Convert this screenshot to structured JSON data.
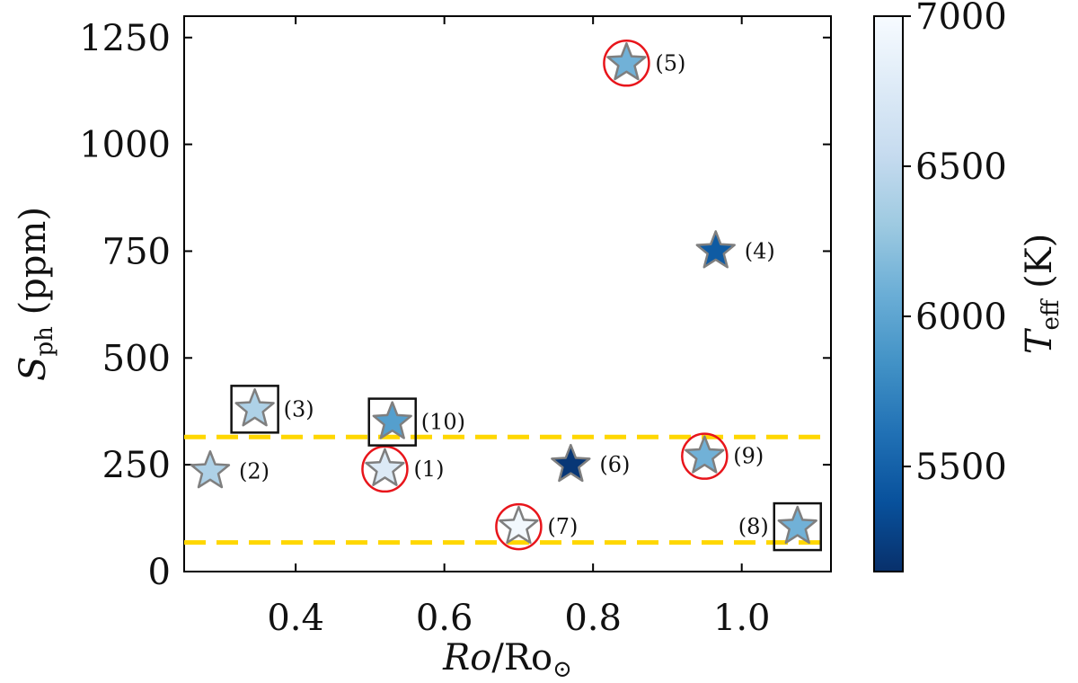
{
  "chart_data": {
    "type": "scatter",
    "xlabel": {
      "italic": "Ro",
      "rest": "/Ro",
      "sub": "⊙"
    },
    "ylabel": {
      "main": "S",
      "sub": "ph",
      "rest": " (ppm)"
    },
    "xlim": [
      0.25,
      1.12
    ],
    "ylim": [
      0,
      1300
    ],
    "xticks": [
      0.4,
      0.6,
      0.8,
      1.0
    ],
    "xtick_labels": [
      "0.4",
      "0.6",
      "0.8",
      "1.0"
    ],
    "yticks": [
      0,
      250,
      500,
      750,
      1000,
      1250
    ],
    "ytick_labels": [
      "0",
      "250",
      "500",
      "750",
      "1000",
      "1250"
    ],
    "hlines": [
      {
        "y": 315,
        "color": "#ffd700",
        "style": "dashed"
      },
      {
        "y": 68,
        "color": "#ffd700",
        "style": "dashed"
      }
    ],
    "colorbar": {
      "label": {
        "main": "T",
        "sub": "eff",
        "rest": " (K)"
      },
      "range": [
        5150,
        7000
      ],
      "ticks": [
        5500,
        6000,
        6500,
        7000
      ],
      "tick_labels": [
        "5500",
        "6000",
        "6500",
        "7000"
      ],
      "colormap": "Blues_r",
      "colors": [
        "#08306b",
        "#08519c",
        "#2171b5",
        "#4292c6",
        "#6baed6",
        "#9ecae1",
        "#c6dbef",
        "#deebf7",
        "#f7fbff"
      ]
    },
    "points": [
      {
        "label": "(1)",
        "x": 0.52,
        "y": 240,
        "teff": 6750,
        "marker": "circle",
        "label_pos": "right"
      },
      {
        "label": "(2)",
        "x": 0.285,
        "y": 235,
        "teff": 6400,
        "marker": "none",
        "label_pos": "right"
      },
      {
        "label": "(3)",
        "x": 0.345,
        "y": 380,
        "teff": 6400,
        "marker": "square",
        "label_pos": "right"
      },
      {
        "label": "(4)",
        "x": 0.965,
        "y": 750,
        "teff": 5450,
        "marker": "none",
        "label_pos": "right"
      },
      {
        "label": "(5)",
        "x": 0.845,
        "y": 1190,
        "teff": 6100,
        "marker": "circle",
        "label_pos": "right"
      },
      {
        "label": "(6)",
        "x": 0.77,
        "y": 250,
        "teff": 5200,
        "marker": "none",
        "label_pos": "right"
      },
      {
        "label": "(7)",
        "x": 0.7,
        "y": 105,
        "teff": 6950,
        "marker": "circle",
        "label_pos": "right"
      },
      {
        "label": "(8)",
        "x": 1.075,
        "y": 105,
        "teff": 6100,
        "marker": "square",
        "label_pos": "left"
      },
      {
        "label": "(9)",
        "x": 0.95,
        "y": 270,
        "teff": 6100,
        "marker": "circle",
        "label_pos": "right"
      },
      {
        "label": "(10)",
        "x": 0.53,
        "y": 350,
        "teff": 5950,
        "marker": "square",
        "label_pos": "right"
      }
    ],
    "marker_colors": {
      "circle": "#e8151b",
      "square": "#111111",
      "star_edge": "#7f7f7f"
    }
  }
}
